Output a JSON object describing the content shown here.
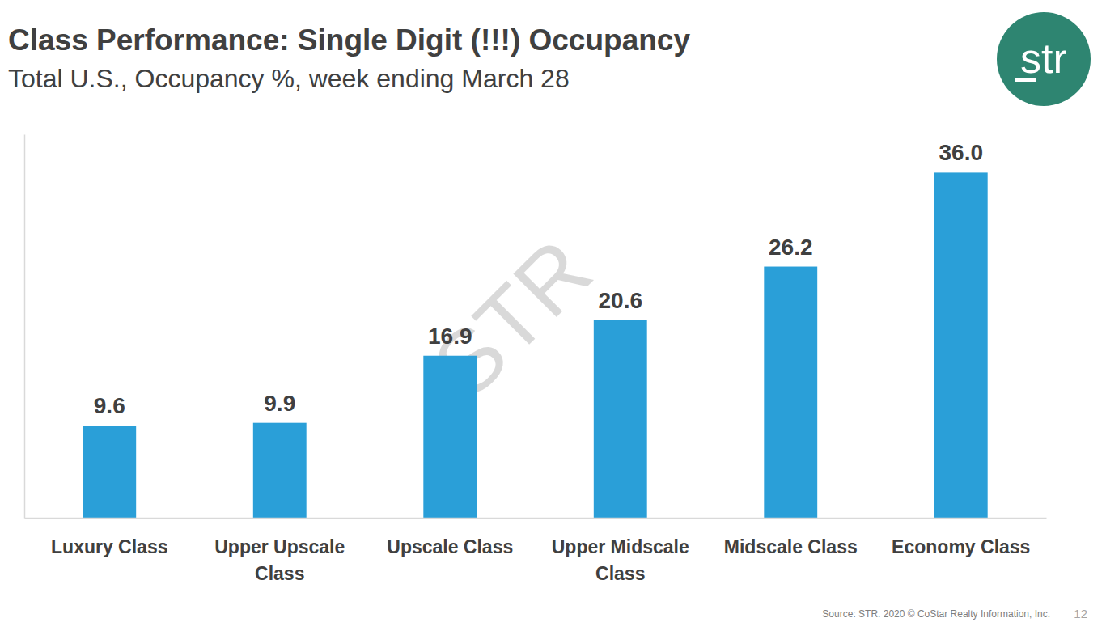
{
  "chart_data": {
    "type": "bar",
    "title": "Class Performance: Single Digit (!!!) Occupancy",
    "subtitle": "Total U.S., Occupancy %, week ending March 28",
    "categories": [
      "Luxury Class",
      "Upper Upscale Class",
      "Upscale Class",
      "Upper Midscale Class",
      "Midscale Class",
      "Economy Class"
    ],
    "values": [
      9.6,
      9.9,
      16.9,
      20.6,
      26.2,
      36.0
    ],
    "value_labels": [
      "9.6",
      "9.9",
      "16.9",
      "20.6",
      "26.2",
      "36.0"
    ],
    "color": "#2a9fd8",
    "ylim": [
      0,
      40
    ],
    "data_labels": true,
    "tick_labels": "x",
    "logo": "str",
    "watermark": "STR",
    "source": "Source: STR. 2020 © CoStar Realty Information, Inc.",
    "page_number": "12"
  }
}
